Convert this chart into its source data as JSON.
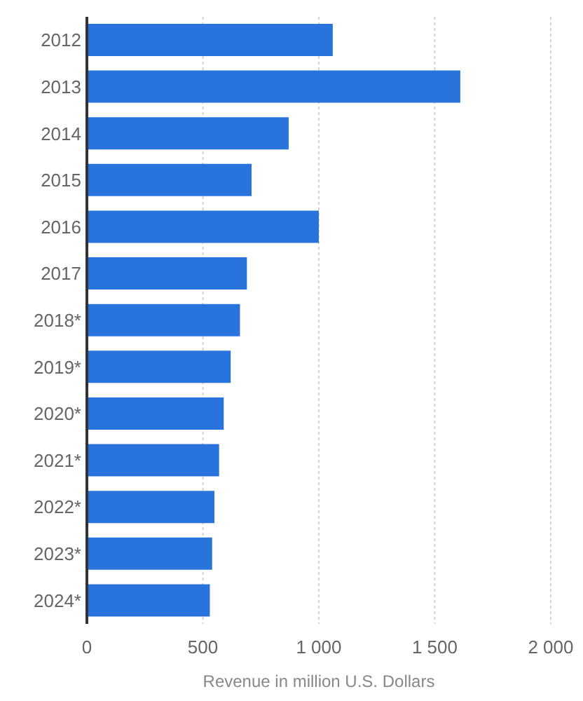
{
  "chart_data": {
    "type": "bar",
    "orientation": "horizontal",
    "xlabel": "Revenue in million U.S. Dollars",
    "categories": [
      "2012",
      "2013",
      "2014",
      "2015",
      "2016",
      "2017",
      "2018*",
      "2019*",
      "2020*",
      "2021*",
      "2022*",
      "2023*",
      "2024*"
    ],
    "values": [
      1060,
      1610,
      870,
      710,
      1000,
      690,
      660,
      620,
      590,
      570,
      550,
      540,
      530
    ],
    "color": "#2874dc",
    "xlim": [
      0,
      2000
    ],
    "xticks": [
      0,
      500,
      {
        "value": 1000,
        "label": "1 000"
      },
      {
        "value": 1500,
        "label": "1 500"
      },
      {
        "value": 2000,
        "label": "2 000"
      }
    ],
    "grid": "x"
  }
}
